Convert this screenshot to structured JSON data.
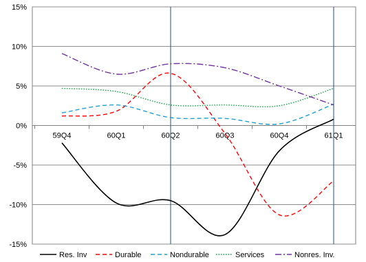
{
  "chart_data": {
    "type": "line",
    "title": "",
    "xlabel": "",
    "ylabel": "",
    "categories": [
      "59Q4",
      "60Q1",
      "60Q2",
      "60Q3",
      "60Q4",
      "61Q1"
    ],
    "y_tick_labels": [
      "15%",
      "10%",
      "5%",
      "0%",
      "-5%",
      "-10%",
      "-15%"
    ],
    "y_ticks": [
      15,
      10,
      5,
      0,
      -5,
      -10,
      -15
    ],
    "ylim": [
      -15,
      15
    ],
    "grid": {
      "horizontal": true,
      "vertical": false
    },
    "reference_lines_at": [
      "60Q2",
      "61Q1"
    ],
    "legend_position": "bottom",
    "series": [
      {
        "name": "Res. Inv",
        "color": "#000000",
        "style": "solid",
        "values": [
          -2.2,
          -9.8,
          -9.5,
          -13.8,
          -3.2,
          0.8
        ]
      },
      {
        "name": "Durable",
        "color": "#ff0000",
        "style": "dashed",
        "values": [
          1.2,
          1.8,
          6.6,
          -1.0,
          -11.3,
          -7.0
        ]
      },
      {
        "name": "Nondurable",
        "color": "#1f9fd6",
        "style": "dashed",
        "values": [
          1.6,
          2.6,
          1.0,
          0.9,
          0.2,
          2.7
        ]
      },
      {
        "name": "Services",
        "color": "#10a040",
        "style": "dotted",
        "values": [
          4.7,
          4.3,
          2.6,
          2.6,
          2.5,
          4.7
        ]
      },
      {
        "name": "Nonres. Inv.",
        "color": "#7030a0",
        "style": "dashdot",
        "values": [
          9.1,
          6.5,
          7.8,
          7.3,
          5.0,
          2.6
        ]
      }
    ]
  }
}
